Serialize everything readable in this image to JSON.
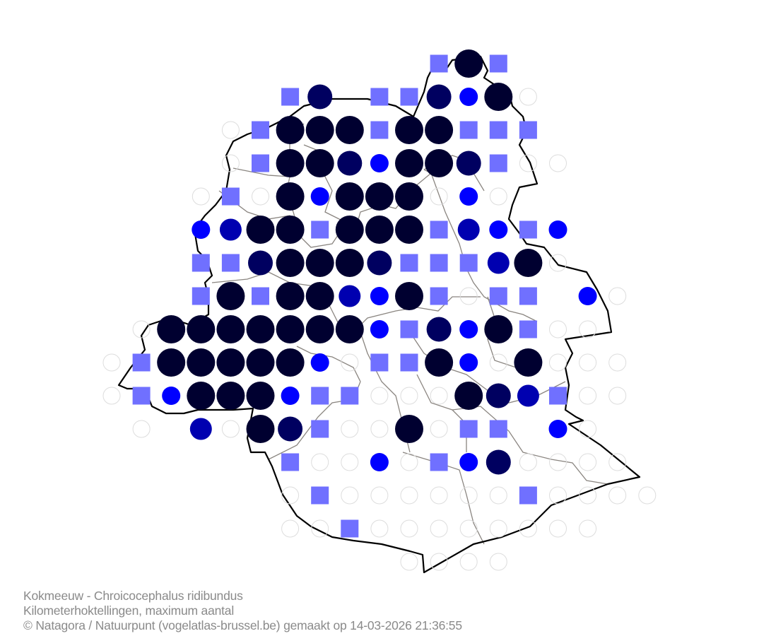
{
  "caption": {
    "species": "Kokmeeuw - Chroicocephalus ridibundus",
    "method": "Kilometerhoktellingen, maximum aantal",
    "credits": "© Natagora / Natuurpunt (vogelatlas-brussel.be) gemaakt op 14-03-2026 21:36:55"
  },
  "symbol_classes": {
    "o": {
      "shape": "empty-circle",
      "color": "#dddddd"
    },
    "s": {
      "shape": "square",
      "color": "#7070ff"
    },
    "1": {
      "shape": "circle",
      "color": "#0000ff"
    },
    "2": {
      "shape": "circle",
      "color": "#0000b0"
    },
    "3": {
      "shape": "circle",
      "color": "#000060"
    },
    "4": {
      "shape": "circle",
      "color": "#000030"
    }
  },
  "colors": {
    "boundary": "#000000",
    "municipalities": "#8a8580"
  },
  "grid": [
    "...........s4s....",
    "......s3-ss314o...",
    "....os444s44sss...",
    "....os4431443soo..",
    "...oso41444o1o....",
    "...1244s444s21s1..",
    "...ss34443sss24o..",
    "...s4s44214sossa1o",
    ".o44444441s314soo.",
    "os444441oss41o4ooo",
    "os14441ssooo432soo",
    ".o.2o43soo4ossb1o.",
    "......soo1os13oooo",
    "......osoooooosoooo",
    "......oosoooooooo.",
    "..........oooo...."
  ]
}
